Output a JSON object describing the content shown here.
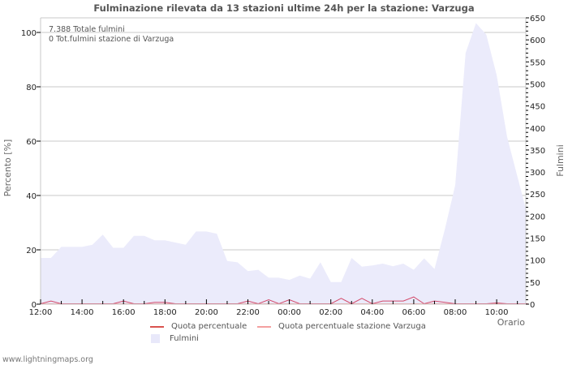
{
  "title": "Fulminazione rilevata da 13 stazioni ultime 24h per la stazione: Varzuga",
  "info": {
    "total_strikes": "7.388 Totale fulmini",
    "station_strikes": "0 Tot.fulmini stazione di Varzuga"
  },
  "axes": {
    "left_label": "Percento   [%]",
    "right_label": "Fulmini",
    "x_label": "Orario",
    "left_ticks": [
      "0",
      "20",
      "40",
      "60",
      "80",
      "100"
    ],
    "right_ticks": [
      "0",
      "50",
      "100",
      "150",
      "200",
      "250",
      "300",
      "350",
      "400",
      "450",
      "500",
      "550",
      "600",
      "650"
    ],
    "x_ticks": [
      "12:00",
      "14:00",
      "16:00",
      "18:00",
      "20:00",
      "22:00",
      "00:00",
      "02:00",
      "04:00",
      "06:00",
      "08:00",
      "10:00"
    ]
  },
  "legend": {
    "items": [
      {
        "label": "Quota percentuale",
        "color": "#d9534f",
        "kind": "line"
      },
      {
        "label": "Quota percentuale stazione Varzuga",
        "color": "#f4a0a0",
        "kind": "line"
      },
      {
        "label": "Fulmini",
        "color": "#e8e8fa",
        "kind": "area"
      }
    ]
  },
  "footer": "www.lightningmaps.org",
  "colors": {
    "area": "#ebebfb",
    "line": "#d44a6a",
    "grid": "#c8c8c8"
  },
  "chart_data": {
    "type": "area",
    "title": "Fulminazione rilevata da 13 stazioni ultime 24h per la stazione: Varzuga",
    "xlabel": "Orario",
    "ylabel": "Percento [%]",
    "y2label": "Fulmini",
    "ylim": [
      0,
      100
    ],
    "y2lim": [
      0,
      650
    ],
    "grid": true,
    "legend_position": "bottom",
    "x": [
      "12:00",
      "12:30",
      "13:00",
      "13:30",
      "14:00",
      "14:30",
      "15:00",
      "15:30",
      "16:00",
      "16:30",
      "17:00",
      "17:30",
      "18:00",
      "18:30",
      "19:00",
      "19:30",
      "20:00",
      "20:30",
      "21:00",
      "21:30",
      "22:00",
      "22:30",
      "23:00",
      "23:30",
      "00:00",
      "00:30",
      "01:00",
      "01:30",
      "02:00",
      "02:30",
      "03:00",
      "03:30",
      "04:00",
      "04:30",
      "05:00",
      "05:30",
      "06:00",
      "06:30",
      "07:00",
      "07:30",
      "08:00",
      "08:30",
      "09:00",
      "09:30",
      "10:00",
      "10:30",
      "11:00",
      "11:30"
    ],
    "series": [
      {
        "name": "Fulmini",
        "axis": "right",
        "values": [
          105,
          105,
          130,
          130,
          130,
          135,
          158,
          128,
          128,
          155,
          155,
          145,
          145,
          140,
          135,
          165,
          165,
          160,
          98,
          95,
          75,
          78,
          60,
          60,
          55,
          65,
          58,
          95,
          50,
          50,
          105,
          85,
          88,
          92,
          86,
          92,
          78,
          104,
          80,
          170,
          270,
          570,
          638,
          612,
          520,
          380,
          290,
          200
        ]
      },
      {
        "name": "Quota percentuale",
        "axis": "left",
        "values": [
          0,
          1,
          0,
          0,
          0,
          0,
          0,
          0,
          1,
          0,
          0,
          0.5,
          0.5,
          0,
          0,
          0,
          0,
          0,
          0,
          0,
          1,
          0,
          1.5,
          0,
          1.5,
          0,
          0,
          0,
          0,
          2,
          0,
          2,
          0,
          1,
          1,
          1,
          2.5,
          0,
          1,
          0.5,
          0,
          0,
          0,
          0,
          0.3,
          0,
          0,
          0
        ]
      },
      {
        "name": "Quota percentuale stazione Varzuga",
        "axis": "left",
        "values": [
          0,
          0,
          0,
          0,
          0,
          0,
          0,
          0,
          0,
          0,
          0,
          0,
          0,
          0,
          0,
          0,
          0,
          0,
          0,
          0,
          0,
          0,
          0,
          0,
          0,
          0,
          0,
          0,
          0,
          0,
          0,
          0,
          0,
          0,
          0,
          0,
          0,
          0,
          0,
          0,
          0,
          0,
          0,
          0,
          0,
          0,
          0,
          0
        ]
      }
    ]
  }
}
